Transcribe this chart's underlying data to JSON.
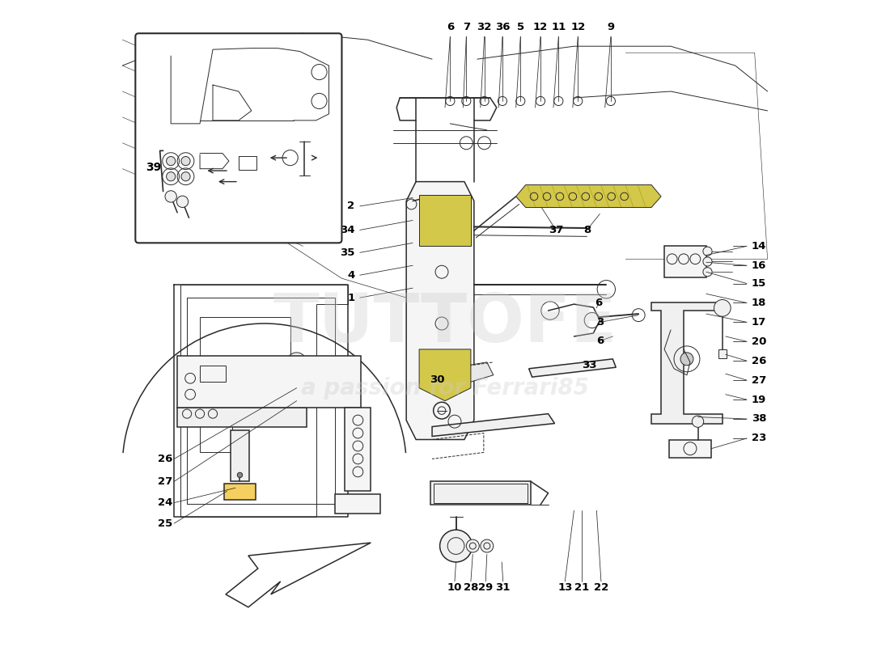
{
  "background_color": "#ffffff",
  "line_color": "#2a2a2a",
  "label_color": "#000000",
  "yellow_color": "#d4c84a",
  "watermark1": "TUTTOFE",
  "watermark2": "a passion for Ferrari85",
  "top_labels": [
    {
      "num": "6",
      "fx": 0.508,
      "fy": 0.04
    },
    {
      "num": "7",
      "fx": 0.533,
      "fy": 0.04
    },
    {
      "num": "32",
      "fx": 0.561,
      "fy": 0.04
    },
    {
      "num": "36",
      "fx": 0.589,
      "fy": 0.04
    },
    {
      "num": "5",
      "fx": 0.617,
      "fy": 0.04
    },
    {
      "num": "12",
      "fx": 0.648,
      "fy": 0.04
    },
    {
      "num": "11",
      "fx": 0.676,
      "fy": 0.04
    },
    {
      "num": "12",
      "fx": 0.706,
      "fy": 0.04
    },
    {
      "num": "9",
      "fx": 0.757,
      "fy": 0.04
    }
  ],
  "left_labels": [
    {
      "num": "2",
      "fx": 0.368,
      "fy": 0.318
    },
    {
      "num": "34",
      "fx": 0.368,
      "fy": 0.355
    },
    {
      "num": "35",
      "fx": 0.368,
      "fy": 0.39
    },
    {
      "num": "4",
      "fx": 0.368,
      "fy": 0.425
    },
    {
      "num": "1",
      "fx": 0.368,
      "fy": 0.46
    },
    {
      "num": "30",
      "fx": 0.508,
      "fy": 0.587
    }
  ],
  "mid_labels": [
    {
      "num": "37",
      "fx": 0.672,
      "fy": 0.355
    },
    {
      "num": "8",
      "fx": 0.72,
      "fy": 0.355
    },
    {
      "num": "6",
      "fx": 0.738,
      "fy": 0.468
    },
    {
      "num": "3",
      "fx": 0.74,
      "fy": 0.498
    },
    {
      "num": "6",
      "fx": 0.74,
      "fy": 0.527
    },
    {
      "num": "33",
      "fx": 0.724,
      "fy": 0.565
    }
  ],
  "right_labels": [
    {
      "num": "14",
      "fx": 0.972,
      "fy": 0.38
    },
    {
      "num": "16",
      "fx": 0.972,
      "fy": 0.41
    },
    {
      "num": "15",
      "fx": 0.972,
      "fy": 0.438
    },
    {
      "num": "18",
      "fx": 0.972,
      "fy": 0.468
    },
    {
      "num": "17",
      "fx": 0.972,
      "fy": 0.498
    },
    {
      "num": "20",
      "fx": 0.972,
      "fy": 0.528
    },
    {
      "num": "26",
      "fx": 0.972,
      "fy": 0.558
    },
    {
      "num": "27",
      "fx": 0.972,
      "fy": 0.588
    },
    {
      "num": "19",
      "fx": 0.972,
      "fy": 0.618
    },
    {
      "num": "38",
      "fx": 0.972,
      "fy": 0.648
    },
    {
      "num": "23",
      "fx": 0.972,
      "fy": 0.678
    }
  ],
  "bottom_labels": [
    {
      "num": "10",
      "fx": 0.515,
      "fy": 0.91
    },
    {
      "num": "28",
      "fx": 0.54,
      "fy": 0.91
    },
    {
      "num": "29",
      "fx": 0.563,
      "fy": 0.91
    },
    {
      "num": "31",
      "fx": 0.59,
      "fy": 0.91
    },
    {
      "num": "13",
      "fx": 0.686,
      "fy": 0.91
    },
    {
      "num": "21",
      "fx": 0.712,
      "fy": 0.91
    },
    {
      "num": "22",
      "fx": 0.742,
      "fy": 0.91
    }
  ],
  "lower_left_labels": [
    {
      "num": "26",
      "fx": 0.055,
      "fy": 0.71
    },
    {
      "num": "27",
      "fx": 0.055,
      "fy": 0.745
    },
    {
      "num": "24",
      "fx": 0.055,
      "fy": 0.778
    },
    {
      "num": "25",
      "fx": 0.055,
      "fy": 0.81
    }
  ],
  "inset_label": {
    "num": "39",
    "fx": 0.048,
    "fy": 0.258
  }
}
